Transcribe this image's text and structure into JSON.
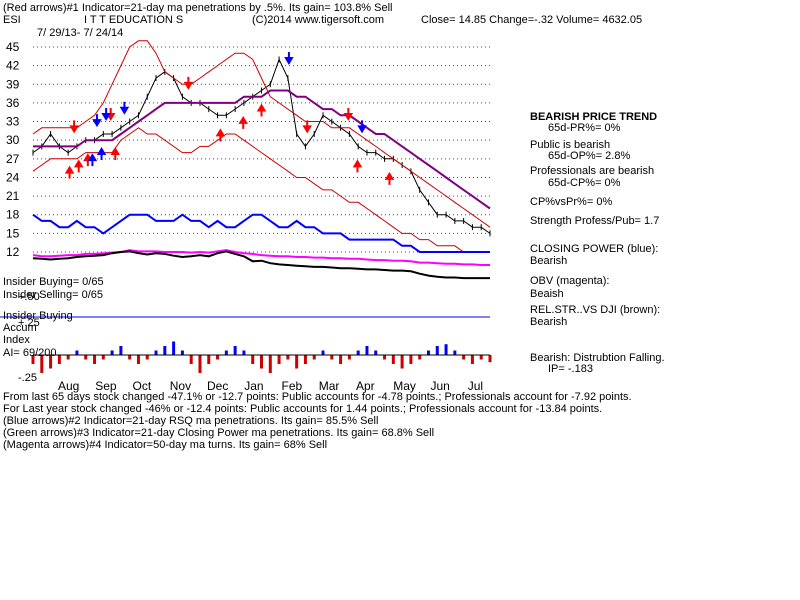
{
  "header": {
    "line1": "(Red arrows)#1 Indicator=21-day ma penetrations by .5%. Its gain= 103.8% Sell",
    "ticker": "ESI",
    "company": "I T T EDUCATION S",
    "copyright": "(C)2014 www.tigersoft.com",
    "quote": "Close=  14.85  Change=-.32 Volume= 4632.05",
    "date_range": "7/ 29/13- 7/ 24/14"
  },
  "colors": {
    "price": "#000000",
    "ma": "#cc0000",
    "ma_long": "#800080",
    "closing_power": "#0000ff",
    "obv": "#ff00ff",
    "relstr": "#000000",
    "accum": "#cc0000",
    "grid": "#008000"
  },
  "chart_data": [
    {
      "type": "line",
      "name": "price",
      "x_labels": [
        "Aug",
        "Sep",
        "Oct",
        "Nov",
        "Dec",
        "Jan",
        "Feb",
        "Mar",
        "Apr",
        "May",
        "Jun",
        "Jul"
      ],
      "y_ticks": [
        "45",
        "42",
        "39",
        "36",
        "33",
        "30",
        "27",
        "24",
        "21",
        "18",
        "15",
        "12"
      ],
      "ylim": [
        12,
        45
      ],
      "close": [
        28,
        29,
        31,
        29,
        28,
        29,
        30,
        30,
        31,
        31,
        32,
        33,
        34,
        37,
        40,
        41,
        40,
        37,
        36,
        36,
        35,
        34,
        34,
        35,
        36,
        37,
        38,
        39,
        43,
        40,
        31,
        29,
        31,
        34,
        33,
        32,
        31,
        29,
        28,
        28,
        27,
        27,
        26,
        25,
        22,
        20,
        18,
        18,
        17,
        17,
        16,
        16,
        15
      ],
      "upper_band": [
        31,
        32,
        32,
        32,
        32,
        32,
        33,
        34,
        36,
        39,
        42,
        45,
        46,
        46,
        44,
        41,
        40,
        39,
        39,
        40,
        41,
        42,
        43,
        44,
        44,
        43,
        40,
        37,
        36,
        35,
        34,
        33,
        33,
        33,
        32,
        32,
        32,
        31,
        30,
        29,
        28,
        27,
        26,
        25,
        24,
        23,
        22,
        21,
        20,
        19,
        18,
        17,
        16
      ],
      "lower_band": [
        25,
        26,
        27,
        27,
        27,
        27,
        28,
        28,
        28,
        28,
        30,
        31,
        32,
        31,
        31,
        30,
        29,
        28,
        28,
        29,
        29,
        30,
        31,
        31,
        30,
        29,
        28,
        27,
        26,
        25,
        24,
        24,
        23,
        22,
        22,
        21,
        20,
        20,
        19,
        18,
        17,
        16,
        15,
        15,
        14,
        14,
        13,
        13,
        13,
        12,
        12,
        12,
        12
      ],
      "ma": [
        29,
        29,
        29,
        29,
        29,
        29,
        30,
        30,
        30,
        30,
        31,
        32,
        33,
        34,
        35,
        36,
        36,
        36,
        36,
        36,
        36,
        36,
        36,
        36,
        37,
        37,
        37,
        38,
        38,
        38,
        37,
        37,
        36,
        35,
        35,
        34,
        34,
        33,
        32,
        31,
        31,
        30,
        29,
        28,
        27,
        26,
        25,
        24,
        23,
        22,
        21,
        20,
        19
      ],
      "closing_power": [
        18,
        17,
        17,
        16,
        16,
        17,
        16,
        16,
        15,
        16,
        17,
        18,
        18,
        18,
        17,
        17,
        17,
        18,
        17,
        17,
        16,
        17,
        16,
        16,
        17,
        18,
        18,
        17,
        16,
        16,
        17,
        16,
        16,
        15,
        15,
        15,
        14,
        14,
        14,
        14,
        14,
        14,
        13,
        13,
        12,
        12,
        12,
        12,
        12,
        12,
        12,
        12,
        12
      ],
      "obv": [
        12,
        11.8,
        11.8,
        11.9,
        12,
        12,
        12.2,
        12.2,
        12.3,
        12.4,
        12.5,
        12.8,
        12.6,
        12.6,
        12.6,
        12.5,
        12.5,
        12.5,
        12.4,
        12.5,
        12.4,
        12.6,
        12.8,
        12.5,
        12.3,
        12.2,
        12.0,
        11.9,
        11.8,
        11.8,
        11.7,
        11.7,
        11.6,
        11.6,
        11.5,
        11.5,
        11.4,
        11.4,
        11.3,
        11.2,
        11.2,
        11.1,
        11.1,
        11.0,
        10.8,
        10.8,
        10.7,
        10.6,
        10.6,
        10.5,
        10.5,
        10.4,
        10.4
      ],
      "relstr": [
        12,
        11.9,
        11.8,
        11.9,
        12,
        12.2,
        12.3,
        12.4,
        12.5,
        12.8,
        13.0,
        13.1,
        12.8,
        12.6,
        12.8,
        12.7,
        12.4,
        12.2,
        12.3,
        12.5,
        12.3,
        12.8,
        13.1,
        12.7,
        12.3,
        11.5,
        11.6,
        11.2,
        11.0,
        10.9,
        10.8,
        10.7,
        10.6,
        10.6,
        10.5,
        10.4,
        10.4,
        10.3,
        10.2,
        10.2,
        10.1,
        10.0,
        10.0,
        9.9,
        9.5,
        9.2,
        9.0,
        8.9,
        8.9,
        8.8,
        8.8,
        8.8,
        8.8
      ],
      "accum": [
        -0.1,
        -0.2,
        -0.15,
        -0.1,
        -0.05,
        0.05,
        -0.05,
        -0.1,
        -0.05,
        0.05,
        0.1,
        -0.05,
        -0.1,
        -0.05,
        0.05,
        0.1,
        0.15,
        0.05,
        -0.1,
        -0.2,
        -0.1,
        -0.05,
        0.05,
        0.1,
        0.05,
        -0.1,
        -0.15,
        -0.2,
        -0.1,
        -0.05,
        -0.15,
        -0.1,
        -0.05,
        0.05,
        -0.05,
        -0.1,
        -0.05,
        0.05,
        0.1,
        0.05,
        -0.05,
        -0.1,
        -0.15,
        -0.1,
        -0.05,
        0.05,
        0.1,
        0.12,
        0.05,
        -0.05,
        -0.1,
        -0.05,
        -0.08
      ],
      "accum_ticks": [
        "+.50",
        "+.25",
        "-.25"
      ]
    }
  ],
  "arrows_red_up": [
    0.08,
    0.1,
    0.12,
    0.18,
    0.41,
    0.46,
    0.5,
    0.71,
    0.78
  ],
  "arrows_red_down": [
    0.09,
    0.17,
    0.34,
    0.6,
    0.69
  ],
  "arrows_blue_up": [
    0.13,
    0.15
  ],
  "arrows_blue_down": [
    0.14,
    0.16,
    0.2,
    0.56,
    0.72
  ],
  "insider": {
    "buying": "Insider Buying= 0/65",
    "selling": "Insider Selling= 0/65",
    "accum_label1": "Insider Buying",
    "accum_label2": "Accum",
    "accum_label3": "Index",
    "ai": "AI= 69/200"
  },
  "right_panel": {
    "bearish_trend": "BEARISH PRICE TREND",
    "pr": "65d-PR%= 0%",
    "public": "Public is bearish",
    "op": "65d-OP%= 2.8%",
    "prof": "Professionals are bearish",
    "cp": "65d-CP%= 0%",
    "cpvspr": "CP%vsPr%=  0%",
    "strength": "Strength Profess/Pub= 1.7",
    "closing_power": "CLOSING POWER (blue):",
    "closing_power_val": "Bearish",
    "obv": "OBV (magenta):",
    "obv_val": "Beaish",
    "relstr": "REL.STR..VS DJI (brown):",
    "relstr_val": "Bearish",
    "distribution": "Bearish: Distrubtion Falling.",
    "ip": "IP= -.183"
  },
  "footer": {
    "line1": "From last 65 days stock changed -47.1% or -12.7 points:  Public accounts for -4.78 points.;  Professionals account for -7.92 points.",
    "line2": "For Last year stock changed -46% or -12.4 points:  Public accounts for  1.44 points.;  Professionals account for -13.84 points.",
    "line3": "(Blue arrows)#2 Indicator=21-day RSQ ma penetrations. Its gain= 85.5% Sell",
    "line4": "(Green arrows)#3 Indicator=21-day Closing Power ma penetrations. Its gain= 68.8% Sell",
    "line5": "(Magenta arrows)#4 Indicator=50-day ma turns. Its gain= 68% Sell"
  }
}
